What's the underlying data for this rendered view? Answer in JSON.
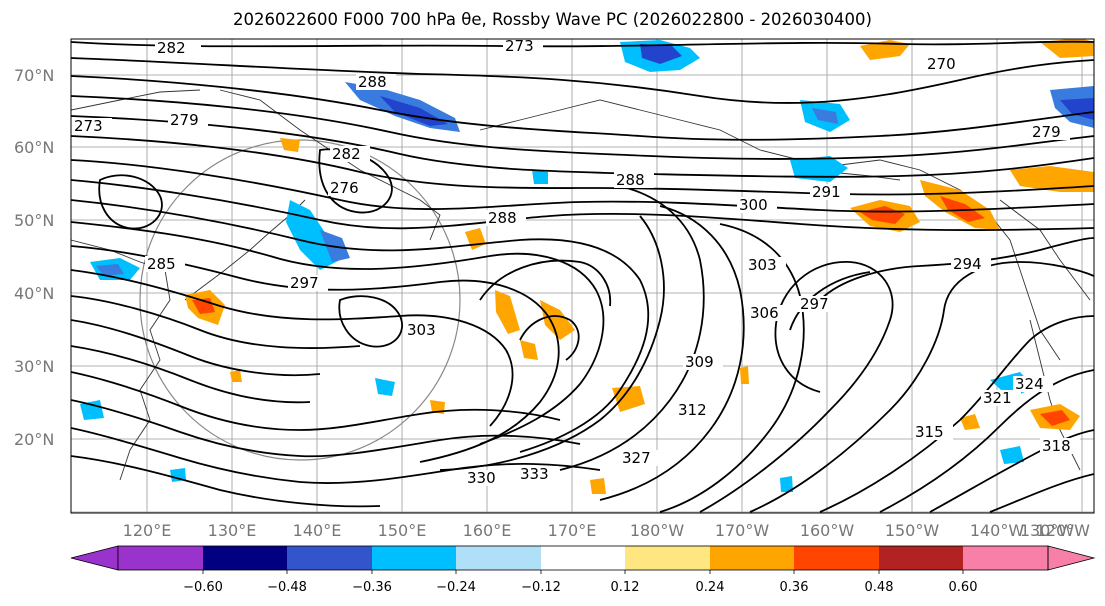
{
  "title": "2026022600 F000 700 hPa θe, Rossby Wave PC (2026022800 - 2026030400)",
  "lat_labels": [
    "70°N",
    "60°N",
    "50°N",
    "40°N",
    "30°N",
    "20°N"
  ],
  "lon_labels": [
    "120°E",
    "130°E",
    "140°E",
    "150°E",
    "160°E",
    "170°E",
    "180°W",
    "170°W",
    "160°W",
    "150°W",
    "140°W",
    "130°W",
    "120°W"
  ],
  "contour_labels": [
    "282",
    "273",
    "270",
    "279",
    "288",
    "273",
    "279",
    "276",
    "285",
    "288",
    "291",
    "300",
    "297",
    "303",
    "306",
    "294",
    "297",
    "309",
    "303",
    "324",
    "321",
    "315",
    "318",
    "312",
    "327",
    "330",
    "333",
    "288",
    "282"
  ],
  "colorbar": {
    "ticks": [
      "−0.60",
      "−0.48",
      "−0.36",
      "−0.24",
      "−0.12",
      "0.12",
      "0.24",
      "0.36",
      "0.48",
      "0.60"
    ],
    "colors": [
      "#9933cc",
      "#000080",
      "#3355cc",
      "#00bfff",
      "#b0e0f8",
      "#ffffff",
      "#ffe680",
      "#ffa500",
      "#ff4500",
      "#b22222",
      "#f77fa8",
      "#f77fa8"
    ]
  },
  "anomaly_colors": {
    "blue_dark": "#2244cc",
    "blue_mid": "#3a7be0",
    "cyan": "#00bfff",
    "orange": "#ffa500",
    "red_orange": "#ff4500"
  }
}
